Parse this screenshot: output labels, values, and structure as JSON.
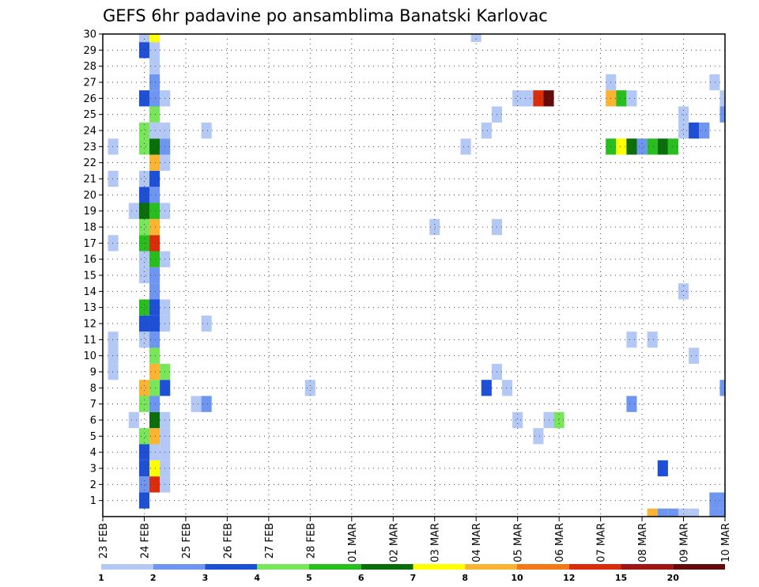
{
  "chart_data": {
    "type": "heatmap",
    "title": "GEFS 6hr padavine po ansamblima Banatski Karlovac",
    "xlabel": "",
    "ylabel": "",
    "x_tick_labels": [
      "23 FEB",
      "24 FEB",
      "25 FEB",
      "26 FEB",
      "27 FEB",
      "28 FEB",
      "01 MAR",
      "02 MAR",
      "03 MAR",
      "04 MAR",
      "05 MAR",
      "06 MAR",
      "07 MAR",
      "08 MAR",
      "09 MAR",
      "10 MAR"
    ],
    "y_tick_labels": [
      "1",
      "2",
      "3",
      "4",
      "5",
      "6",
      "7",
      "8",
      "9",
      "10",
      "11",
      "12",
      "13",
      "14",
      "15",
      "16",
      "17",
      "18",
      "19",
      "20",
      "21",
      "22",
      "23",
      "24",
      "25",
      "26",
      "27",
      "28",
      "29",
      "30"
    ],
    "x_unit": "6-hour step",
    "x_range": [
      0,
      60
    ],
    "y_range": [
      0,
      30
    ],
    "grid": true,
    "legend_position": "bottom",
    "legend": {
      "colors": [
        "#b4c8f5",
        "#6e96f0",
        "#1e50d7",
        "#78e65a",
        "#28be1e",
        "#0a6e0a",
        "#ffff00",
        "#fab432",
        "#f57814",
        "#dc2d0a",
        "#a01414",
        "#640a0a"
      ],
      "labels": [
        "1",
        "2",
        "3",
        "4",
        "5",
        "6",
        "7",
        "8",
        "10",
        "12",
        "15",
        "20"
      ]
    },
    "cells": [
      {
        "x": 4,
        "y": 0,
        "v": 3
      },
      {
        "x": 4,
        "y": 1,
        "v": 2
      },
      {
        "x": 5,
        "y": 1,
        "v": 10
      },
      {
        "x": 6,
        "y": 1,
        "v": 1
      },
      {
        "x": 4,
        "y": 2,
        "v": 3
      },
      {
        "x": 5,
        "y": 2,
        "v": 7
      },
      {
        "x": 6,
        "y": 2,
        "v": 1
      },
      {
        "x": 4,
        "y": 3,
        "v": 3
      },
      {
        "x": 5,
        "y": 3,
        "v": 1
      },
      {
        "x": 6,
        "y": 3,
        "v": 1
      },
      {
        "x": 4,
        "y": 4,
        "v": 4
      },
      {
        "x": 5,
        "y": 4,
        "v": 8
      },
      {
        "x": 6,
        "y": 4,
        "v": 1
      },
      {
        "x": 3,
        "y": 5,
        "v": 1
      },
      {
        "x": 5,
        "y": 5,
        "v": 6
      },
      {
        "x": 6,
        "y": 5,
        "v": 1
      },
      {
        "x": 4,
        "y": 6,
        "v": 4
      },
      {
        "x": 5,
        "y": 6,
        "v": 2
      },
      {
        "x": 4,
        "y": 7,
        "v": 8
      },
      {
        "x": 5,
        "y": 7,
        "v": 4
      },
      {
        "x": 6,
        "y": 7,
        "v": 3
      },
      {
        "x": 1,
        "y": 8,
        "v": 1
      },
      {
        "x": 5,
        "y": 8,
        "v": 8
      },
      {
        "x": 6,
        "y": 8,
        "v": 4
      },
      {
        "x": 1,
        "y": 9,
        "v": 1
      },
      {
        "x": 5,
        "y": 9,
        "v": 4
      },
      {
        "x": 1,
        "y": 10,
        "v": 1
      },
      {
        "x": 4,
        "y": 10,
        "v": 1
      },
      {
        "x": 5,
        "y": 10,
        "v": 2
      },
      {
        "x": 4,
        "y": 11,
        "v": 3
      },
      {
        "x": 5,
        "y": 11,
        "v": 3
      },
      {
        "x": 6,
        "y": 11,
        "v": 1
      },
      {
        "x": 4,
        "y": 12,
        "v": 5
      },
      {
        "x": 5,
        "y": 12,
        "v": 3
      },
      {
        "x": 6,
        "y": 12,
        "v": 1
      },
      {
        "x": 5,
        "y": 13,
        "v": 2
      },
      {
        "x": 4,
        "y": 14,
        "v": 1
      },
      {
        "x": 5,
        "y": 14,
        "v": 2
      },
      {
        "x": 4,
        "y": 15,
        "v": 1
      },
      {
        "x": 5,
        "y": 15,
        "v": 5
      },
      {
        "x": 6,
        "y": 15,
        "v": 1
      },
      {
        "x": 1,
        "y": 16,
        "v": 1
      },
      {
        "x": 4,
        "y": 16,
        "v": 5
      },
      {
        "x": 5,
        "y": 16,
        "v": 10
      },
      {
        "x": 4,
        "y": 17,
        "v": 4
      },
      {
        "x": 5,
        "y": 17,
        "v": 8
      },
      {
        "x": 3,
        "y": 18,
        "v": 1
      },
      {
        "x": 4,
        "y": 18,
        "v": 6
      },
      {
        "x": 5,
        "y": 18,
        "v": 5
      },
      {
        "x": 6,
        "y": 18,
        "v": 1
      },
      {
        "x": 4,
        "y": 19,
        "v": 3
      },
      {
        "x": 5,
        "y": 19,
        "v": 2
      },
      {
        "x": 1,
        "y": 20,
        "v": 1
      },
      {
        "x": 4,
        "y": 20,
        "v": 1
      },
      {
        "x": 5,
        "y": 20,
        "v": 3
      },
      {
        "x": 5,
        "y": 21,
        "v": 8
      },
      {
        "x": 6,
        "y": 21,
        "v": 1
      },
      {
        "x": 1,
        "y": 22,
        "v": 1
      },
      {
        "x": 4,
        "y": 22,
        "v": 4
      },
      {
        "x": 5,
        "y": 22,
        "v": 6
      },
      {
        "x": 6,
        "y": 22,
        "v": 2
      },
      {
        "x": 4,
        "y": 23,
        "v": 4
      },
      {
        "x": 5,
        "y": 23,
        "v": 1
      },
      {
        "x": 6,
        "y": 23,
        "v": 1
      },
      {
        "x": 5,
        "y": 24,
        "v": 4
      },
      {
        "x": 4,
        "y": 25,
        "v": 3
      },
      {
        "x": 5,
        "y": 25,
        "v": 2
      },
      {
        "x": 6,
        "y": 25,
        "v": 1
      },
      {
        "x": 5,
        "y": 26,
        "v": 2
      },
      {
        "x": 5,
        "y": 27,
        "v": 1
      },
      {
        "x": 4,
        "y": 28,
        "v": 3
      },
      {
        "x": 5,
        "y": 28,
        "v": 1
      },
      {
        "x": 4,
        "y": 29,
        "v": 1
      },
      {
        "x": 5,
        "y": 29,
        "v": 7
      },
      {
        "x": 9,
        "y": 6,
        "v": 1
      },
      {
        "x": 10,
        "y": 6,
        "v": 2
      },
      {
        "x": 10,
        "y": 11,
        "v": 1
      },
      {
        "x": 10,
        "y": 23,
        "v": 1
      },
      {
        "x": 20,
        "y": 7,
        "v": 1
      },
      {
        "x": 32,
        "y": 17,
        "v": 1
      },
      {
        "x": 35,
        "y": 22,
        "v": 1
      },
      {
        "x": 36,
        "y": 29,
        "v": 1
      },
      {
        "x": 37,
        "y": 7,
        "v": 3
      },
      {
        "x": 38,
        "y": 8,
        "v": 1
      },
      {
        "x": 37,
        "y": 23,
        "v": 1
      },
      {
        "x": 38,
        "y": 24,
        "v": 1
      },
      {
        "x": 38,
        "y": 17,
        "v": 1
      },
      {
        "x": 39,
        "y": 7,
        "v": 1
      },
      {
        "x": 40,
        "y": 5,
        "v": 1
      },
      {
        "x": 40,
        "y": 25,
        "v": 1
      },
      {
        "x": 41,
        "y": 25,
        "v": 1
      },
      {
        "x": 42,
        "y": 25,
        "v": 10
      },
      {
        "x": 43,
        "y": 25,
        "v": 12
      },
      {
        "x": 42,
        "y": 4,
        "v": 1
      },
      {
        "x": 43,
        "y": 5,
        "v": 1
      },
      {
        "x": 44,
        "y": 5,
        "v": 4
      },
      {
        "x": 49,
        "y": 26,
        "v": 1
      },
      {
        "x": 49,
        "y": 25,
        "v": 8
      },
      {
        "x": 50,
        "y": 25,
        "v": 5
      },
      {
        "x": 51,
        "y": 25,
        "v": 1
      },
      {
        "x": 49,
        "y": 22,
        "v": 5
      },
      {
        "x": 50,
        "y": 22,
        "v": 7
      },
      {
        "x": 51,
        "y": 22,
        "v": 6
      },
      {
        "x": 52,
        "y": 22,
        "v": 2
      },
      {
        "x": 53,
        "y": 22,
        "v": 5
      },
      {
        "x": 54,
        "y": 22,
        "v": 6
      },
      {
        "x": 55,
        "y": 22,
        "v": 5
      },
      {
        "x": 51,
        "y": 10,
        "v": 1
      },
      {
        "x": 53,
        "y": 10,
        "v": 1
      },
      {
        "x": 51,
        "y": 6,
        "v": 2
      },
      {
        "x": 53,
        "y": -1,
        "v": 8
      },
      {
        "x": 54,
        "y": -1,
        "v": 2
      },
      {
        "x": 55,
        "y": -1,
        "v": 2
      },
      {
        "x": 56,
        "y": -1,
        "v": 1
      },
      {
        "x": 57,
        "y": -1,
        "v": 1
      },
      {
        "x": 54,
        "y": 2,
        "v": 3
      },
      {
        "x": 56,
        "y": 13,
        "v": 1
      },
      {
        "x": 56,
        "y": 23,
        "v": 1
      },
      {
        "x": 57,
        "y": 23,
        "v": 3
      },
      {
        "x": 58,
        "y": 23,
        "v": 2
      },
      {
        "x": 56,
        "y": 24,
        "v": 1
      },
      {
        "x": 57,
        "y": 9,
        "v": 1
      },
      {
        "x": 59,
        "y": 26,
        "v": 1
      },
      {
        "x": 60,
        "y": 25,
        "v": 1
      },
      {
        "x": 60,
        "y": 24,
        "v": 2
      },
      {
        "x": 60,
        "y": 7,
        "v": 2
      },
      {
        "x": 59,
        "y": 0,
        "v": 2
      },
      {
        "x": 60,
        "y": 0,
        "v": 2
      },
      {
        "x": 59,
        "y": -1,
        "v": 2
      },
      {
        "x": 60,
        "y": -1,
        "v": 2
      }
    ]
  }
}
